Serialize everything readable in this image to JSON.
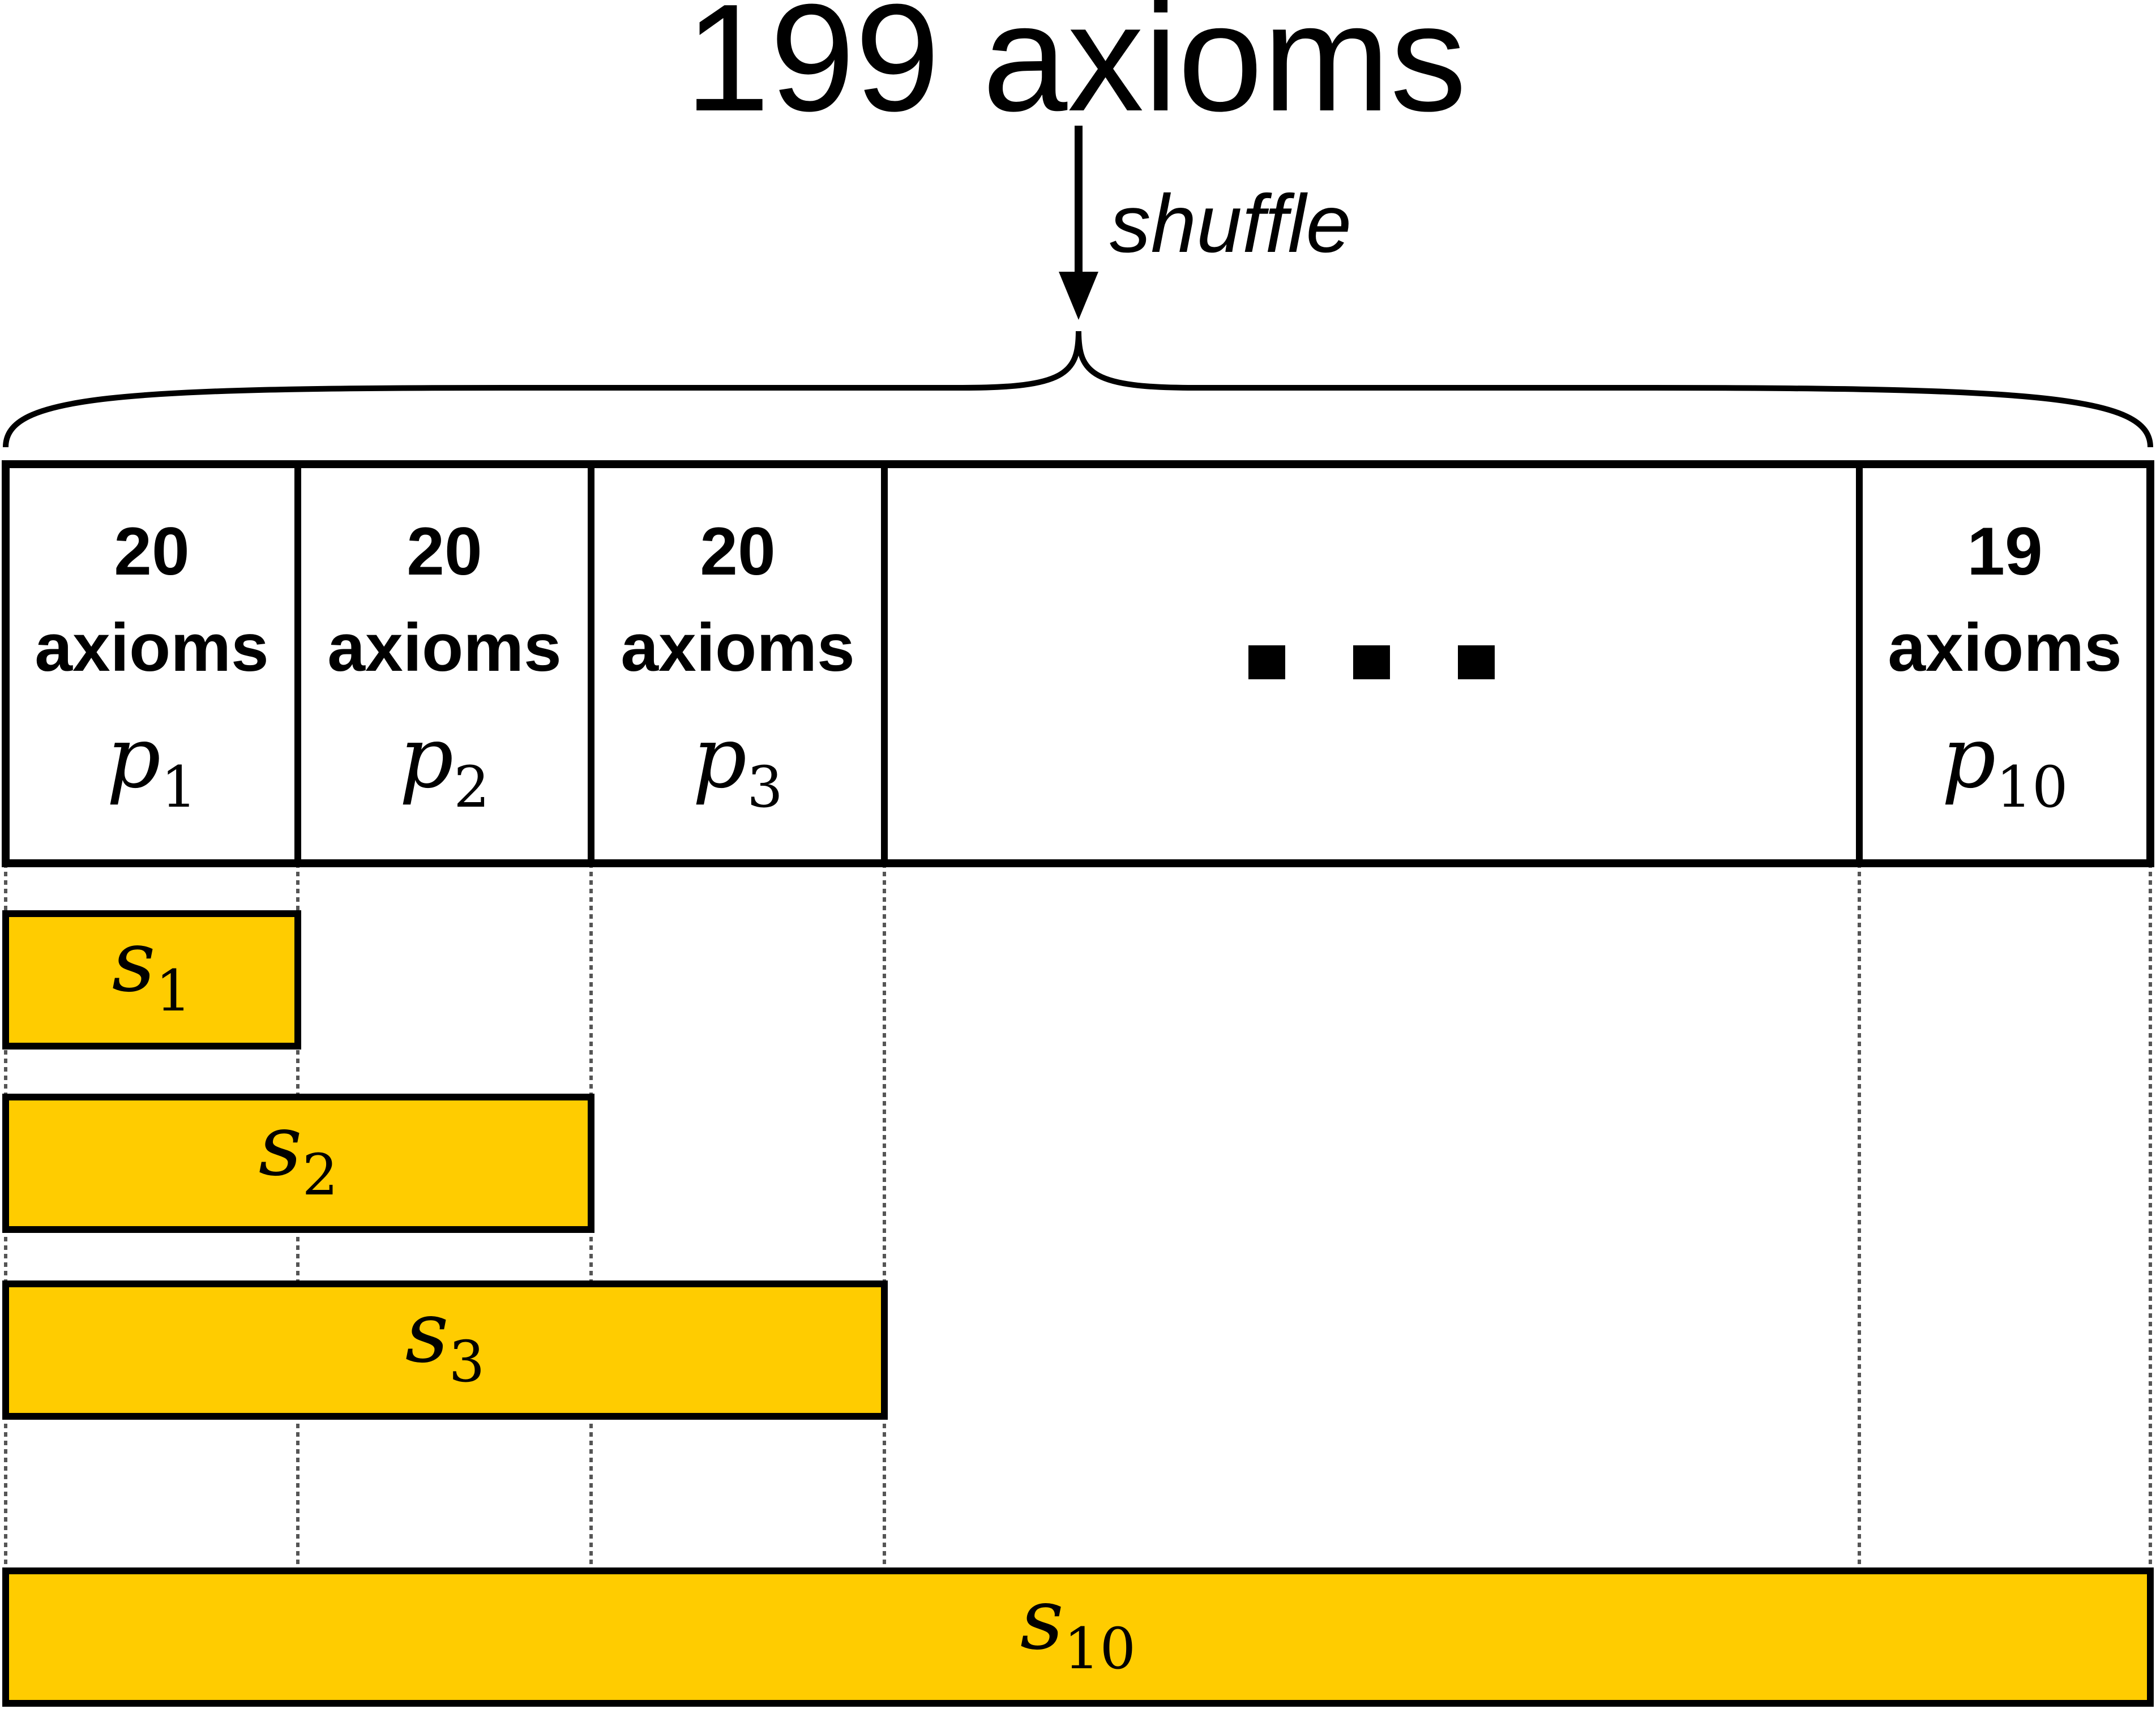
{
  "title": "199 axioms",
  "arrow_label": "shuffle",
  "colors": {
    "stroke": "#000000",
    "subset_fill": "#FFCC00",
    "background": "#FFFFFF",
    "divider": "#555555"
  },
  "partitions": [
    {
      "count": "20",
      "unit": "axioms",
      "var": "p",
      "sub": "1"
    },
    {
      "count": "20",
      "unit": "axioms",
      "var": "p",
      "sub": "2"
    },
    {
      "count": "20",
      "unit": "axioms",
      "var": "p",
      "sub": "3"
    },
    {
      "ellipsis": true
    },
    {
      "count": "19",
      "unit": "axioms",
      "var": "p",
      "sub": "10"
    }
  ],
  "subsets": [
    {
      "var": "s",
      "sub": "1",
      "spans_partitions": 1
    },
    {
      "var": "s",
      "sub": "2",
      "spans_partitions": 2
    },
    {
      "var": "s",
      "sub": "3",
      "spans_partitions": 3
    },
    {
      "var": "s",
      "sub": "10",
      "spans_partitions": 10
    }
  ]
}
